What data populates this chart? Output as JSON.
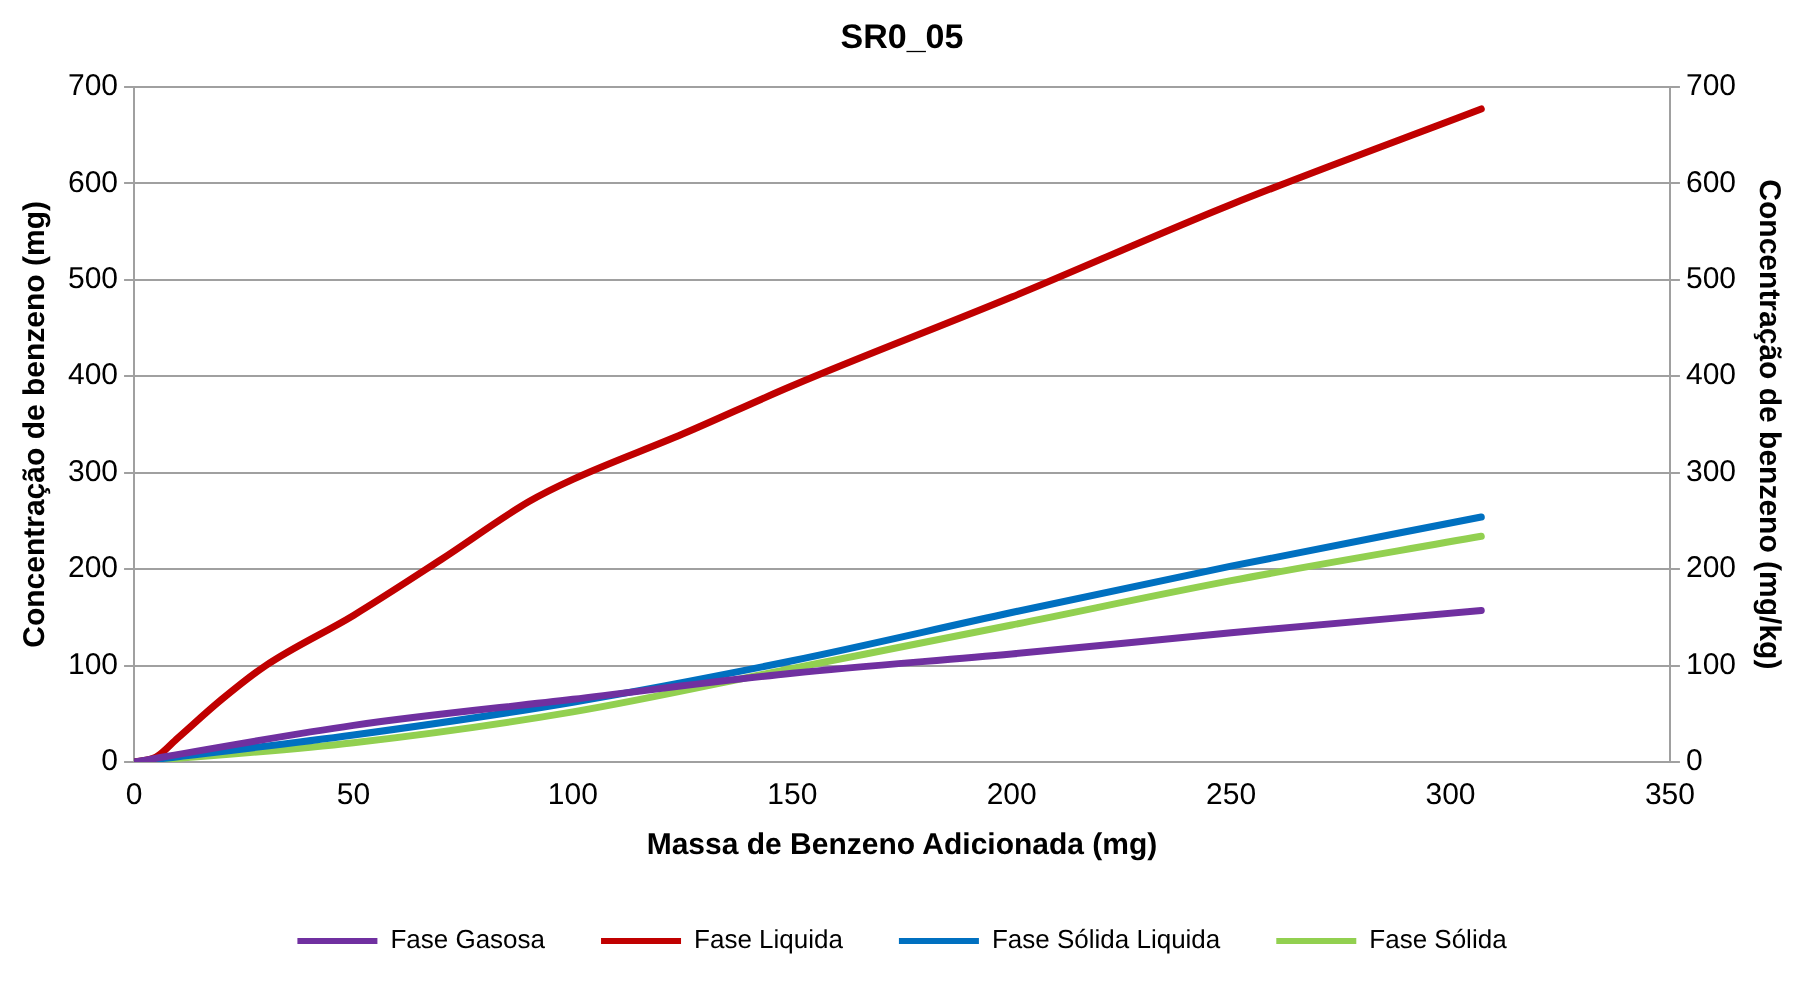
{
  "chart_data": {
    "type": "line",
    "title": "SR0_05",
    "xlabel": "Massa de Benzeno Adicionada (mg)",
    "ylabel": "Concentração de benzeno (mg)",
    "y2label": "Concentração de benzeno (mg/kg)",
    "xlim": [
      0,
      350
    ],
    "xticks": [
      0,
      50,
      100,
      150,
      200,
      250,
      300,
      350
    ],
    "ylim": [
      0,
      700
    ],
    "yticks": [
      0,
      100,
      200,
      300,
      400,
      500,
      600,
      700
    ],
    "y2lim": [
      0,
      700
    ],
    "y2ticks": [
      0,
      100,
      200,
      300,
      400,
      500,
      600,
      700
    ],
    "grid": "y",
    "legend": "bottom",
    "marker": "none",
    "line_style": "solid",
    "series": [
      {
        "name": "Fase Gasosa",
        "color": "#7030a0",
        "x": [
          0,
          50,
          100,
          150,
          200,
          250,
          307
        ],
        "values": [
          0,
          38,
          65,
          92,
          112,
          134,
          157
        ]
      },
      {
        "name": "Fase Liquida",
        "color": "#c00000",
        "x": [
          0,
          5,
          10,
          20,
          30,
          50,
          70,
          90,
          100,
          125,
          150,
          200,
          250,
          307
        ],
        "values": [
          0,
          5,
          25,
          65,
          100,
          152,
          210,
          270,
          293,
          340,
          390,
          482,
          578,
          677
        ]
      },
      {
        "name": "Fase Sólida Liquida",
        "color": "#0070c0",
        "x": [
          0,
          50,
          100,
          150,
          200,
          250,
          307
        ],
        "values": [
          0,
          28,
          62,
          105,
          155,
          203,
          254
        ]
      },
      {
        "name": "Fase Sólida",
        "color": "#92d050",
        "x": [
          0,
          50,
          100,
          150,
          200,
          250,
          307
        ],
        "values": [
          0,
          20,
          52,
          97,
          142,
          188,
          234
        ]
      }
    ]
  }
}
